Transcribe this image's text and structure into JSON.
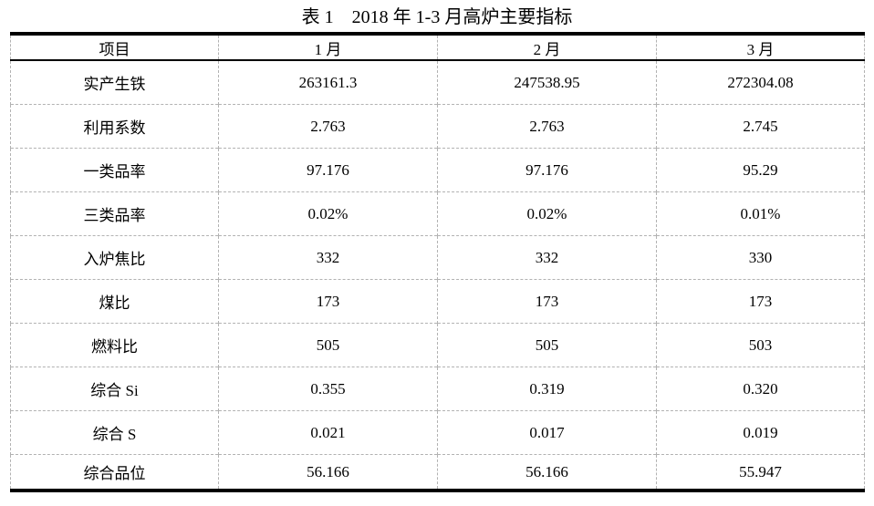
{
  "caption": "表 1　2018 年 1-3 月高炉主要指标",
  "table": {
    "headers": [
      "项目",
      "1 月",
      "2 月",
      "3 月"
    ],
    "rows": [
      {
        "label": "实产生铁",
        "values": [
          "263161.3",
          "247538.95",
          "272304.08"
        ]
      },
      {
        "label": "利用系数",
        "values": [
          "2.763",
          "2.763",
          "2.745"
        ]
      },
      {
        "label": "一类品率",
        "values": [
          "97.176",
          "97.176",
          "95.29"
        ]
      },
      {
        "label": "三类品率",
        "values": [
          "0.02%",
          "0.02%",
          "0.01%"
        ]
      },
      {
        "label": "入炉焦比",
        "values": [
          "332",
          "332",
          "330"
        ]
      },
      {
        "label": "煤比",
        "values": [
          "173",
          "173",
          "173"
        ]
      },
      {
        "label": "燃料比",
        "values": [
          "505",
          "505",
          "503"
        ]
      },
      {
        "label": "综合 Si",
        "values": [
          "0.355",
          "0.319",
          "0.320"
        ]
      },
      {
        "label": "综合 S",
        "values": [
          "0.021",
          "0.017",
          "0.019"
        ]
      },
      {
        "label": "综合品位",
        "values": [
          "56.166",
          "56.166",
          "55.947"
        ]
      }
    ]
  }
}
